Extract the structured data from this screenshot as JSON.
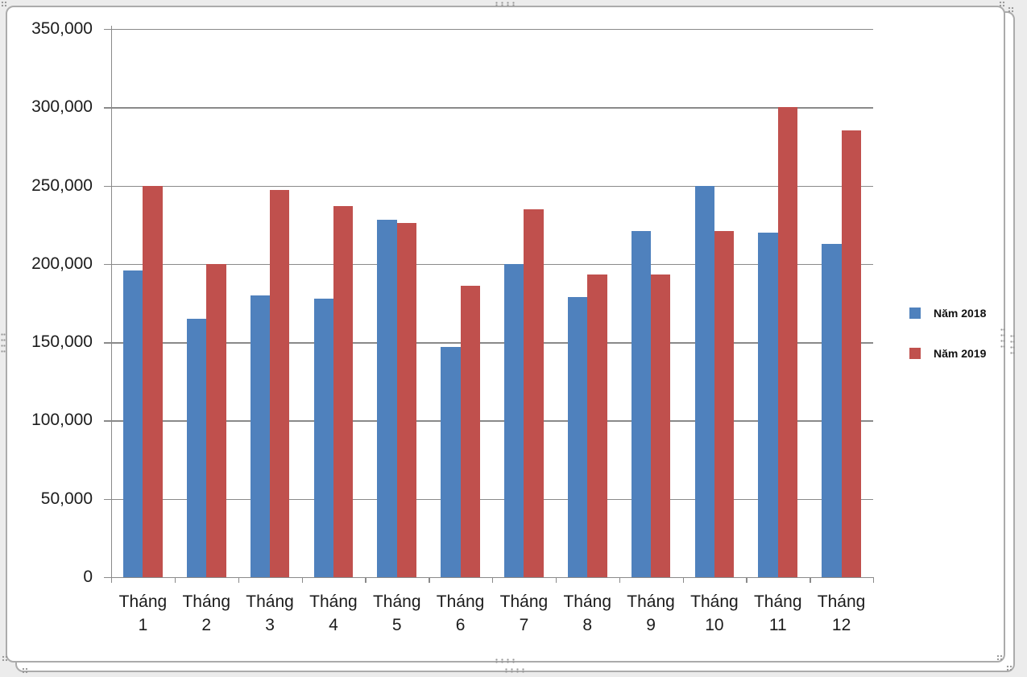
{
  "chart_data": {
    "type": "bar",
    "title": "",
    "categories": [
      "Tháng 1",
      "Tháng 2",
      "Tháng 3",
      "Tháng 4",
      "Tháng 5",
      "Tháng 6",
      "Tháng 7",
      "Tháng 8",
      "Tháng 9",
      "Tháng 10",
      "Tháng 11",
      "Tháng 12"
    ],
    "series": [
      {
        "name": "Năm 2018",
        "color": "#4F81BD",
        "values": [
          196000,
          165000,
          180000,
          178000,
          228000,
          147000,
          200000,
          179000,
          221000,
          250000,
          220000,
          213000
        ]
      },
      {
        "name": "Năm 2019",
        "color": "#C0504D",
        "values": [
          250000,
          200000,
          247000,
          237000,
          226000,
          186000,
          235000,
          193000,
          193000,
          221000,
          300000,
          285000
        ]
      }
    ],
    "xlabel": "",
    "ylabel": "",
    "ylim": [
      0,
      350000
    ],
    "ytick_interval": 50000,
    "ytick_labels": [
      "0",
      "50,000",
      "100,000",
      "150,000",
      "200,000",
      "250,000",
      "300,000",
      "350,000"
    ],
    "grid": "horizontal",
    "legend_position": "right"
  },
  "colors": {
    "series_2018": "#4F81BD",
    "series_2019": "#C0504D",
    "gridline": "#8a8a8a",
    "axis_text": "#1c1c1c",
    "frame_border": "#ababab",
    "handle_dot": "#969696"
  }
}
